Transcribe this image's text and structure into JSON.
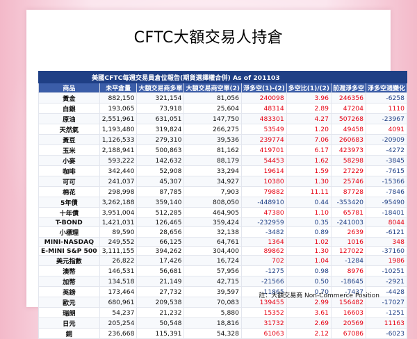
{
  "title": "CFTC大額交易人持倉",
  "table_caption": "美國CFTC每週交易員倉位報告(期貨選擇權合併) As of  201103",
  "columns": [
    "商品",
    "未平倉量",
    "大額交易商多單",
    "大額交易商空單(2)",
    "淨多空(1)-(2)",
    "多空比(1)/(2)",
    "前週淨多空",
    "淨多空週變化"
  ],
  "rows": [
    {
      "name": "黃金",
      "oi": "882,150",
      "long": "321,154",
      "short": "81,056",
      "net": "240098",
      "ratio": "3.96",
      "prev": "246356",
      "chg": "-6258"
    },
    {
      "name": "白銀",
      "oi": "193,065",
      "long": "73,918",
      "short": "25,604",
      "net": "48314",
      "ratio": "2.89",
      "prev": "47204",
      "chg": "1110"
    },
    {
      "name": "原油",
      "oi": "2,551,961",
      "long": "631,051",
      "short": "147,750",
      "net": "483301",
      "ratio": "4.27",
      "prev": "507268",
      "chg": "-23967"
    },
    {
      "name": "天然氣",
      "oi": "1,193,480",
      "long": "319,824",
      "short": "266,275",
      "net": "53549",
      "ratio": "1.20",
      "prev": "49458",
      "chg": "4091"
    },
    {
      "name": "黃豆",
      "oi": "1,126,533",
      "long": "279,310",
      "short": "39,536",
      "net": "239774",
      "ratio": "7.06",
      "prev": "260683",
      "chg": "-20909"
    },
    {
      "name": "玉米",
      "oi": "2,188,941",
      "long": "500,863",
      "short": "81,162",
      "net": "419701",
      "ratio": "6.17",
      "prev": "423973",
      "chg": "-4272"
    },
    {
      "name": "小麥",
      "oi": "593,222",
      "long": "142,632",
      "short": "88,179",
      "net": "54453",
      "ratio": "1.62",
      "prev": "58298",
      "chg": "-3845"
    },
    {
      "name": "咖啡",
      "oi": "342,440",
      "long": "52,908",
      "short": "33,294",
      "net": "19614",
      "ratio": "1.59",
      "prev": "27229",
      "chg": "-7615"
    },
    {
      "name": "可可",
      "oi": "241,037",
      "long": "45,307",
      "short": "34,927",
      "net": "10380",
      "ratio": "1.30",
      "prev": "25746",
      "chg": "-15366"
    },
    {
      "name": "棉花",
      "oi": "298,998",
      "long": "87,785",
      "short": "7,903",
      "net": "79882",
      "ratio": "11.11",
      "prev": "87728",
      "chg": "-7846"
    },
    {
      "name": "5年債",
      "oi": "3,262,188",
      "long": "359,140",
      "short": "808,050",
      "net": "-448910",
      "ratio": "0.44",
      "prev": "-353420",
      "chg": "-95490"
    },
    {
      "name": "十年債",
      "oi": "3,951,004",
      "long": "512,285",
      "short": "464,905",
      "net": "47380",
      "ratio": "1.10",
      "prev": "65781",
      "chg": "-18401"
    },
    {
      "name": "T-BOND",
      "oi": "1,421,031",
      "long": "126,465",
      "short": "359,424",
      "net": "-232959",
      "ratio": "0.35",
      "prev": "-241003",
      "chg": "8044"
    },
    {
      "name": "小標理",
      "oi": "89,590",
      "long": "28,656",
      "short": "32,138",
      "net": "-3482",
      "ratio": "0.89",
      "prev": "2639",
      "chg": "-6121"
    },
    {
      "name": "MINI-NASDAQ",
      "oi": "249,552",
      "long": "66,125",
      "short": "64,761",
      "net": "1364",
      "ratio": "1.02",
      "prev": "1016",
      "chg": "348"
    },
    {
      "name": "E-MINI S&P 500",
      "oi": "3,111,155",
      "long": "394,262",
      "short": "304,400",
      "net": "89862",
      "ratio": "1.30",
      "prev": "127022",
      "chg": "-37160"
    },
    {
      "name": "美元指數",
      "oi": "26,822",
      "long": "17,426",
      "short": "16,724",
      "net": "702",
      "ratio": "1.04",
      "prev": "-1284",
      "chg": "1986"
    },
    {
      "name": "澳幣",
      "oi": "146,531",
      "long": "56,681",
      "short": "57,956",
      "net": "-1275",
      "ratio": "0.98",
      "prev": "8976",
      "chg": "-10251"
    },
    {
      "name": "加幣",
      "oi": "134,518",
      "long": "21,149",
      "short": "42,715",
      "net": "-21566",
      "ratio": "0.50",
      "prev": "-18645",
      "chg": "-2921"
    },
    {
      "name": "英鎊",
      "oi": "173,464",
      "long": "27,732",
      "short": "39,597",
      "net": "-11865",
      "ratio": "0.70",
      "prev": "-7437",
      "chg": "-4428"
    },
    {
      "name": "歐元",
      "oi": "680,961",
      "long": "209,538",
      "short": "70,083",
      "net": "139455",
      "ratio": "2.99",
      "prev": "156482",
      "chg": "-17027"
    },
    {
      "name": "瑞朗",
      "oi": "54,237",
      "long": "21,232",
      "short": "5,880",
      "net": "15352",
      "ratio": "3.61",
      "prev": "16603",
      "chg": "-1251"
    },
    {
      "name": "日元",
      "oi": "205,254",
      "long": "50,548",
      "short": "18,816",
      "net": "31732",
      "ratio": "2.69",
      "prev": "20569",
      "chg": "11163"
    },
    {
      "name": "銅",
      "oi": "236,668",
      "long": "115,391",
      "short": "54,328",
      "net": "61063",
      "ratio": "2.12",
      "prev": "67086",
      "chg": "-6023"
    }
  ],
  "note": "註：大額交易商 Non-Commerce Position",
  "colors": {
    "header_dark": "#1f3f85",
    "header": "#3b5da8",
    "positive": "#e60012",
    "negative": "#1f3f85"
  }
}
